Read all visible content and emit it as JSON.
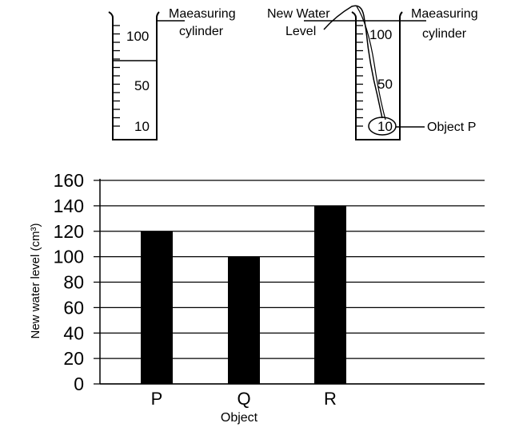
{
  "diagram": {
    "left_cylinder": {
      "label_line1": "Maeasuring",
      "label_line2": "cylinder",
      "scale": [
        "100",
        "50",
        "10"
      ]
    },
    "right_cylinder": {
      "label_line1": "Maeasuring",
      "label_line2": "cylinder",
      "scale": [
        "100",
        "50",
        "10"
      ],
      "level_line1": "New Water",
      "level_line2": "Level",
      "object_label": "Object P"
    }
  },
  "chart_data": {
    "type": "bar",
    "categories": [
      "P",
      "Q",
      "R"
    ],
    "values": [
      120,
      100,
      140
    ],
    "xlabel": "Object",
    "ylabel": "New water level (cm³)",
    "ylim": [
      0,
      160
    ],
    "yticks": [
      "0",
      "20",
      "40",
      "60",
      "80",
      "100",
      "120",
      "140",
      "160"
    ],
    "grid": true,
    "bar_color": "#000000"
  }
}
